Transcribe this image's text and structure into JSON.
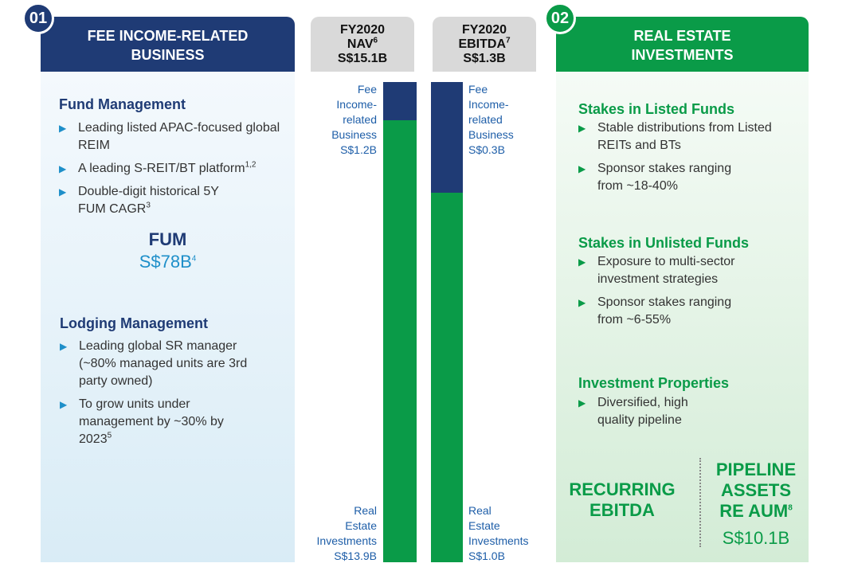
{
  "left": {
    "badge": "01",
    "header": "FEE INCOME-RELATED BUSINESS",
    "fund_management": {
      "title": "Fund Management",
      "bullets": [
        {
          "text": "Leading listed APAC-focused global REIM",
          "sup": ""
        },
        {
          "text": "A leading S-REIT/BT platform",
          "sup": "1,2"
        },
        {
          "text": "Double-digit historical 5Y FUM CAGR",
          "sup": "3"
        }
      ]
    },
    "fum": {
      "label": "FUM",
      "value": "S$78B",
      "sup": "4"
    },
    "lodging_management": {
      "title": "Lodging Management",
      "bullets": [
        {
          "text": "Leading global SR manager (~80% managed units are 3rd party owned)",
          "sup": ""
        },
        {
          "text": "To grow units under management by ~30% by 2023",
          "sup": "5"
        }
      ]
    }
  },
  "nav": {
    "pill_line1": "FY2020",
    "pill_line2": "NAV",
    "pill_sup": "6",
    "pill_line3": "S$15.1B",
    "fee_label": [
      "Fee",
      "Income-",
      "related",
      "Business",
      "S$1.2B"
    ],
    "re_label": [
      "Real",
      "Estate",
      "Investments",
      "S$13.9B"
    ]
  },
  "ebitda": {
    "pill_line1": "FY2020",
    "pill_line2": "EBITDA",
    "pill_sup": "7",
    "pill_line3": "S$1.3B",
    "fee_label": [
      "Fee",
      "Income-",
      "related",
      "Business",
      "S$0.3B"
    ],
    "re_label": [
      "Real",
      "Estate",
      "Investments",
      "S$1.0B"
    ]
  },
  "chart_data": {
    "type": "bar",
    "stacked": true,
    "categories": [
      "FY2020 NAV",
      "FY2020 EBITDA"
    ],
    "series": [
      {
        "name": "Fee Income-related Business",
        "values": [
          1.2,
          0.3
        ]
      },
      {
        "name": "Real Estate Investments",
        "values": [
          13.9,
          1.0
        ]
      }
    ],
    "totals": [
      15.1,
      1.3
    ],
    "colors": {
      "fee": "#1f3b75",
      "real_estate": "#0a9b48"
    }
  },
  "right": {
    "badge": "02",
    "header": "REAL ESTATE INVESTMENTS",
    "listed": {
      "title": "Stakes in Listed Funds",
      "bullets": [
        {
          "text": "Stable distributions from Listed REITs and BTs"
        },
        {
          "text": "Sponsor stakes ranging from ~18-40%"
        }
      ]
    },
    "unlisted": {
      "title": "Stakes in Unlisted Funds",
      "bullets": [
        {
          "text": "Exposure to multi-sector investment strategies"
        },
        {
          "text": "Sponsor stakes ranging from ~6-55%"
        }
      ]
    },
    "properties": {
      "title": "Investment Properties",
      "bullets": [
        {
          "text": "Diversified, high quality pipeline"
        }
      ]
    },
    "recurring": [
      "RECURRING",
      "EBITDA"
    ],
    "pipeline": {
      "lines": [
        "PIPELINE",
        "ASSETS",
        "RE AUM"
      ],
      "sup": "8",
      "value": "S$10.1B"
    }
  }
}
